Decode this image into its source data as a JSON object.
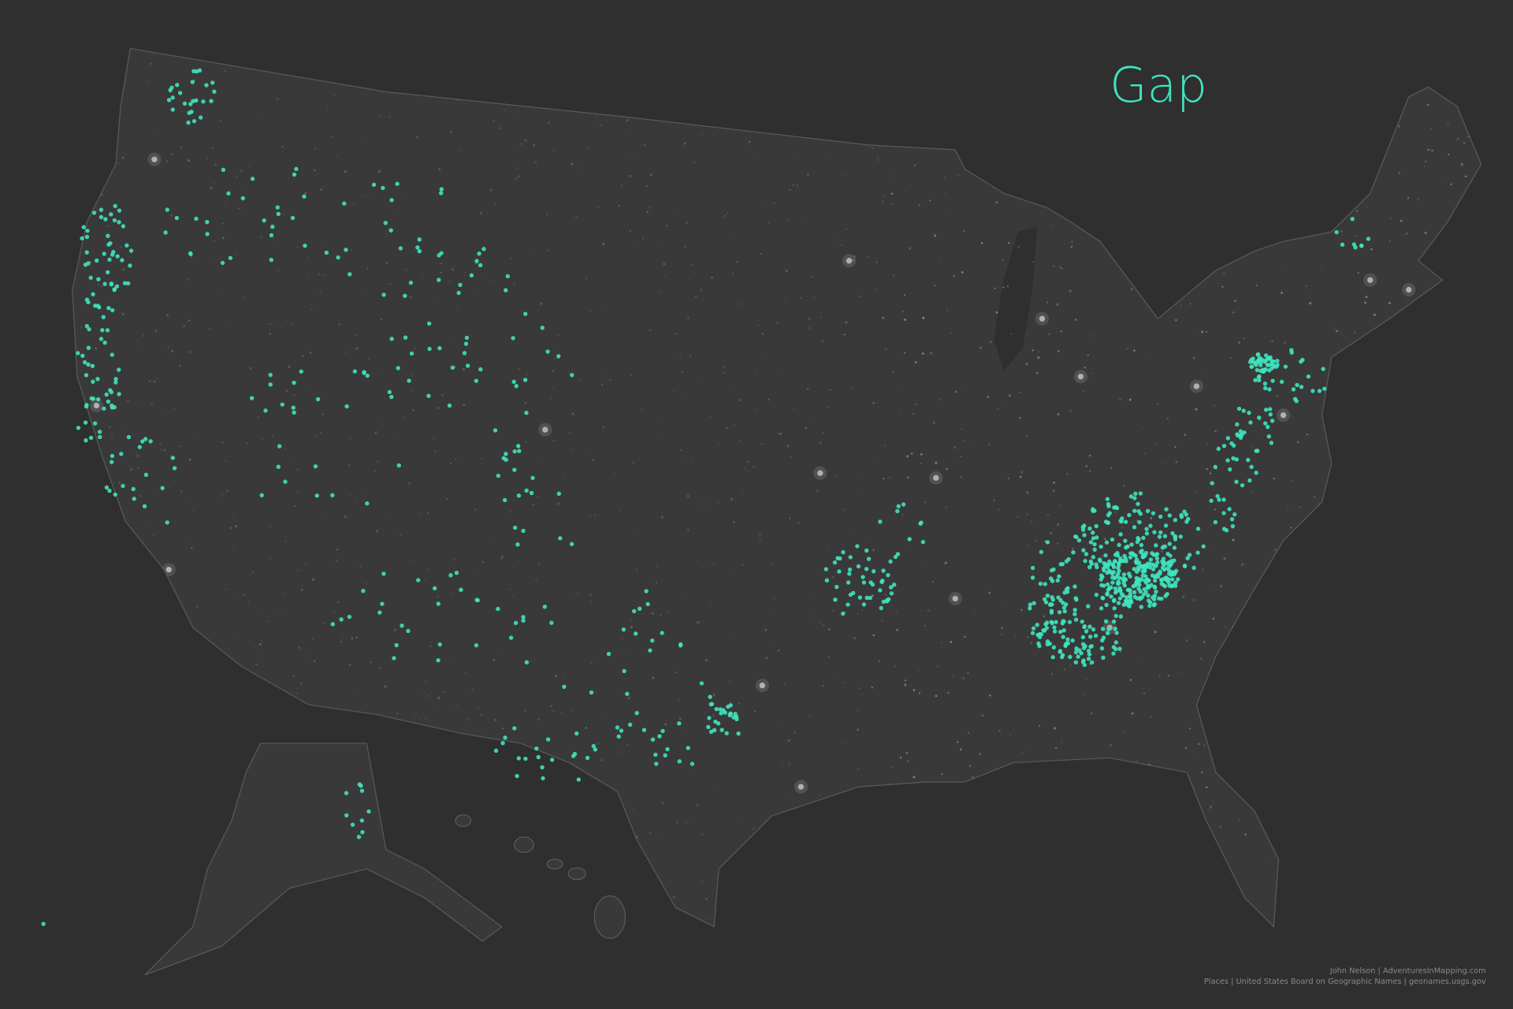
{
  "title": "Gap",
  "credits": [
    "John Nelson | AdventuresInMapping.com",
    "Places | United States Board on Geographic Names | geonames.usgs.gov"
  ]
}
